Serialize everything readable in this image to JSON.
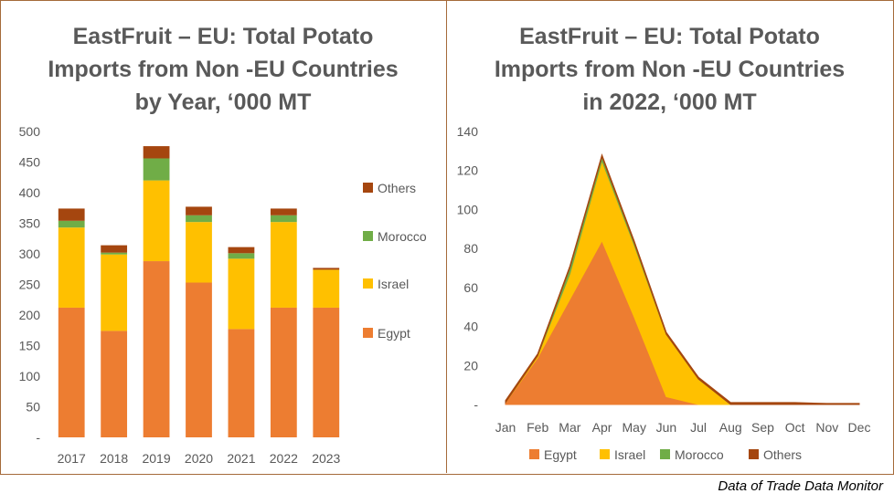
{
  "source_note": "Data of Trade Data Monitor",
  "chart_data": [
    {
      "type": "bar",
      "stacked": true,
      "title": "EastFruit – EU: Total Potato\nImports from Non -EU Countries\nby Year, ‘000 MT",
      "categories": [
        "2017",
        "2018",
        "2019",
        "2020",
        "2021",
        "2022",
        "2023"
      ],
      "series": [
        {
          "name": "Egypt",
          "color": "#ED7D31",
          "values": [
            212,
            174,
            288,
            253,
            177,
            212,
            212
          ]
        },
        {
          "name": "Israel",
          "color": "#FFC000",
          "values": [
            131,
            125,
            132,
            99,
            115,
            140,
            62
          ]
        },
        {
          "name": "Morocco",
          "color": "#70AD47",
          "values": [
            11,
            3,
            36,
            11,
            9,
            11,
            0
          ]
        },
        {
          "name": "Others",
          "color": "#A5460F",
          "values": [
            20,
            12,
            20,
            14,
            10,
            11,
            3
          ]
        }
      ],
      "ylim": [
        0,
        500
      ],
      "yticks": [
        0,
        50,
        100,
        150,
        200,
        250,
        300,
        350,
        400,
        450,
        500
      ],
      "ytick_labels": [
        "-",
        "50",
        "100",
        "150",
        "200",
        "250",
        "300",
        "350",
        "400",
        "450",
        "500"
      ],
      "legend_position": "right",
      "legend_order": [
        "Others",
        "Morocco",
        "Israel",
        "Egypt"
      ],
      "grid": false
    },
    {
      "type": "area",
      "stacked": true,
      "title": "EastFruit – EU: Total Potato\nImports from Non -EU Countries\nin 2022, ‘000 MT",
      "categories": [
        "Jan",
        "Feb",
        "Mar",
        "Apr",
        "May",
        "Jun",
        "Jul",
        "Aug",
        "Sep",
        "Oct",
        "Nov",
        "Dec"
      ],
      "series": [
        {
          "name": "Egypt",
          "color": "#ED7D31",
          "values": [
            1,
            24,
            54,
            84,
            45,
            4,
            0,
            0,
            0,
            0,
            0,
            0
          ]
        },
        {
          "name": "Israel",
          "color": "#FFC000",
          "values": [
            0,
            1,
            13,
            41,
            37,
            32,
            13,
            0,
            0,
            0,
            0,
            0
          ]
        },
        {
          "name": "Morocco",
          "color": "#70AD47",
          "values": [
            0,
            0,
            3,
            2,
            1,
            0,
            0,
            0,
            0,
            0,
            0,
            0
          ]
        },
        {
          "name": "Others",
          "color": "#A5460F",
          "values": [
            1,
            1,
            1,
            1,
            1,
            1,
            1,
            1,
            1,
            1,
            0.5,
            0.5
          ]
        }
      ],
      "ylim": [
        0,
        140
      ],
      "yticks": [
        0,
        20,
        40,
        60,
        80,
        100,
        120,
        140
      ],
      "ytick_labels": [
        "-",
        "20",
        "40",
        "60",
        "80",
        "100",
        "120",
        "140"
      ],
      "legend_position": "bottom",
      "legend_order": [
        "Egypt",
        "Israel",
        "Morocco",
        "Others"
      ],
      "grid": false
    }
  ]
}
